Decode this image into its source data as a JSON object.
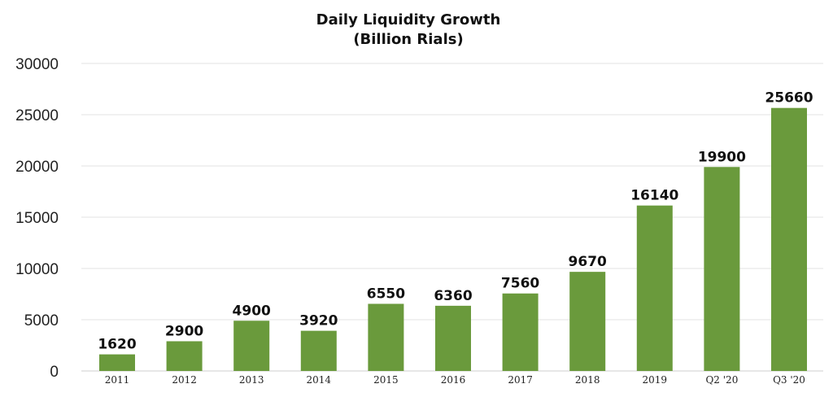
{
  "chart_data": {
    "type": "bar",
    "title": "Daily Liquidity Growth",
    "subtitle": "(Billion Rials)",
    "categories": [
      "2011",
      "2012",
      "2013",
      "2014",
      "2015",
      "2016",
      "2017",
      "2018",
      "2019",
      "Q2 '20",
      "Q3 '20"
    ],
    "values": [
      1620,
      2900,
      4900,
      3920,
      6550,
      6360,
      7560,
      9670,
      16140,
      19900,
      25660
    ],
    "value_labels": [
      "1620",
      "2900",
      "4900",
      "3920",
      "6550",
      "6360",
      "7560",
      "9670",
      "16140",
      "19900",
      "25660"
    ],
    "ylim": [
      0,
      30000
    ],
    "yticks": [
      0,
      5000,
      10000,
      15000,
      20000,
      25000,
      30000
    ],
    "ytick_labels": [
      "0",
      "5000",
      "10000",
      "15000",
      "20000",
      "25000",
      "30000"
    ],
    "xlabel": "",
    "ylabel": "",
    "grid": true,
    "legend": "none",
    "bar_color": "#6a9a3c"
  }
}
